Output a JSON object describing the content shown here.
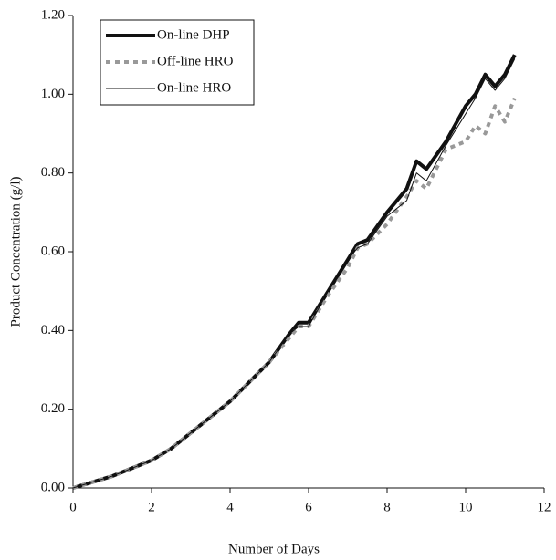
{
  "chart_data": {
    "type": "line",
    "x_label": "Number of Days",
    "y_label": "Product Concentration (g/l)",
    "x": [
      0,
      0.5,
      1,
      1.5,
      2,
      2.5,
      3,
      3.5,
      4,
      4.5,
      5,
      5.5,
      5.75,
      6,
      6.5,
      7,
      7.25,
      7.5,
      8,
      8.5,
      8.75,
      9,
      9.5,
      10,
      10.25,
      10.5,
      10.75,
      11,
      11.25
    ],
    "series": [
      {
        "name": "On-line DHP",
        "color": "#111111",
        "linewidth": 4,
        "dashed": false,
        "values": [
          0,
          0.015,
          0.03,
          0.05,
          0.07,
          0.1,
          0.14,
          0.18,
          0.22,
          0.27,
          0.32,
          0.39,
          0.42,
          0.42,
          0.5,
          0.58,
          0.62,
          0.63,
          0.7,
          0.76,
          0.83,
          0.81,
          0.88,
          0.97,
          1.0,
          1.05,
          1.02,
          1.05,
          1.1
        ]
      },
      {
        "name": "Off-line HRO",
        "color": "#999999",
        "linewidth": 4,
        "dashed": true,
        "values": [
          0,
          0.015,
          0.03,
          0.05,
          0.07,
          0.1,
          0.14,
          0.18,
          0.22,
          0.27,
          0.32,
          0.38,
          0.41,
          0.41,
          0.49,
          0.56,
          0.61,
          0.62,
          0.67,
          0.74,
          0.78,
          0.76,
          0.86,
          0.88,
          0.92,
          0.9,
          0.97,
          0.93,
          0.99
        ]
      },
      {
        "name": "On-line HRO",
        "color": "#111111",
        "linewidth": 1,
        "dashed": false,
        "values": [
          0,
          0.015,
          0.03,
          0.05,
          0.07,
          0.1,
          0.14,
          0.18,
          0.22,
          0.27,
          0.32,
          0.39,
          0.41,
          0.41,
          0.5,
          0.58,
          0.61,
          0.62,
          0.69,
          0.73,
          0.8,
          0.78,
          0.87,
          0.95,
          0.99,
          1.04,
          1.01,
          1.04,
          1.09
        ]
      }
    ],
    "xlim": [
      0,
      12
    ],
    "xticks": [
      0,
      2,
      4,
      6,
      8,
      10,
      12
    ],
    "ylim": [
      0,
      1.2
    ],
    "yticks": [
      {
        "value": 0,
        "label": "0.00"
      },
      {
        "value": 0.2,
        "label": "0.20"
      },
      {
        "value": 0.4,
        "label": "0.40"
      },
      {
        "value": 0.6,
        "label": "0.60"
      },
      {
        "value": 0.8,
        "label": "0.80"
      },
      {
        "value": 1.0,
        "label": "1.00"
      },
      {
        "value": 1.2,
        "label": "1.20"
      }
    ],
    "legend": "upper-left"
  }
}
